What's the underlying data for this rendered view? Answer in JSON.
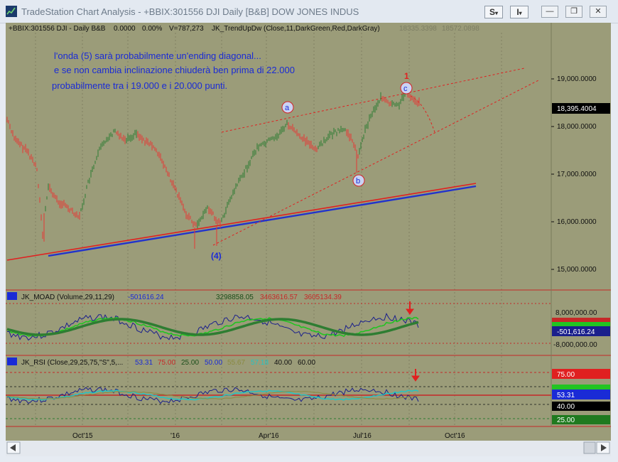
{
  "window": {
    "title": "TradeStation Chart Analysis - +BBIX:301556 DJI Daily [B&B] DOW JONES INDUS",
    "btn_s": "S",
    "btn_i": "I"
  },
  "header": {
    "symbol": "+BBIX:301556 DJI - Daily  B&B",
    "v1": "0.0000",
    "v2": "0.00%",
    "volume": "V=787,273",
    "study": "JK_TrendUpDw (Close,11,DarkGreen,Red,DarkGray)",
    "val1": "18335.3398",
    "val2": "18572.0898"
  },
  "annotation": {
    "line1": "l'onda (5) sarà probabilmente un'ending diagonal...",
    "line2": "e se non cambia inclinazione chiuderà ben prima di 22.000",
    "line3": "probabilmente tra i 19.000 e i 20.000 punti."
  },
  "waves": {
    "a": "a",
    "b": "b",
    "c": "c",
    "one": "1",
    "four": "(4)"
  },
  "price_axis": [
    "19,000.0000",
    "18,000.0000",
    "17,000.0000",
    "16,000.0000",
    "15,000.0000"
  ],
  "last_price": "18,395.4004",
  "moad": {
    "label": "JK_MOAD (Volume,29,11,29)",
    "v1": "-501616.24",
    "v2": "3298858.05",
    "v3": "3463616.57",
    "v4": "3605134.39",
    "axis_top": "8,000,000.00",
    "axis_bottom": "-8,000,000.00",
    "last": "-501,616.24"
  },
  "rsi": {
    "label": "JK_RSI (Close,29,25,75,\"S\",5,...",
    "v1": "53.31",
    "v2": "75.00",
    "v3": "25.00",
    "v4": "50.00",
    "v5": "55.67",
    "v6": "57.18",
    "v7": "40.00",
    "v8": "60.00",
    "axis_75": "75.00",
    "axis_5331": "53.31",
    "axis_40": "40.00",
    "axis_25": "25.00"
  },
  "time_axis": [
    "Oct'15",
    "'16",
    "Apr'16",
    "Jul'16",
    "Oct'16"
  ],
  "colors": {
    "chart_bg": "#9b9c79",
    "up_bar": "#2e7d32",
    "down_bar": "#e53935",
    "trend_blue": "#2233cc",
    "trend_red": "#e02020",
    "text_blue": "#1a2bd6"
  }
}
